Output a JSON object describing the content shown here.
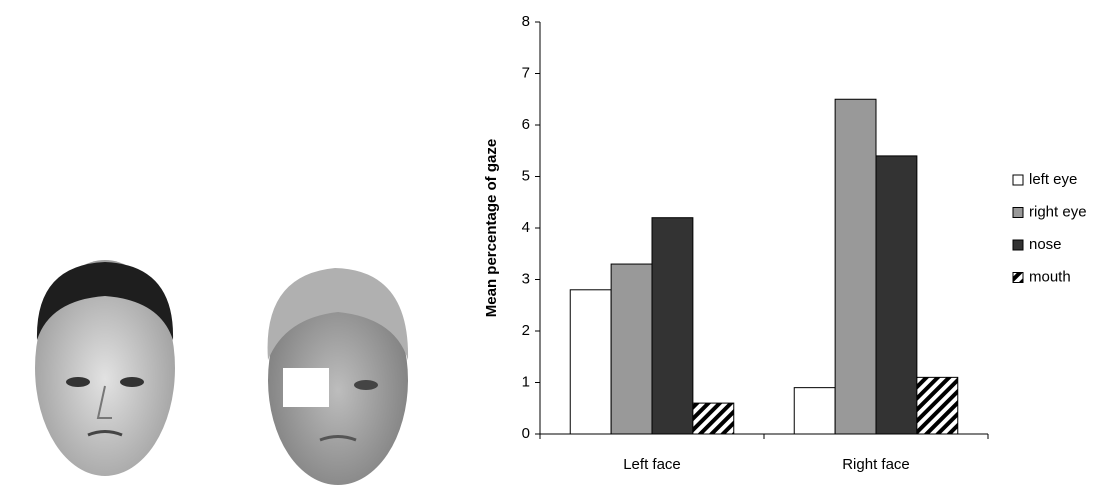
{
  "chart_data": {
    "type": "bar",
    "y_label": "Mean percentage of gaze",
    "categories": [
      "Left face",
      "Right face"
    ],
    "series": [
      {
        "name": "left eye",
        "color": "#ffffff",
        "values": [
          2.8,
          0.9
        ]
      },
      {
        "name": "right eye",
        "color": "#999999",
        "values": [
          3.3,
          6.5
        ]
      },
      {
        "name": "nose",
        "color": "#333333",
        "values": [
          4.2,
          5.4
        ]
      },
      {
        "name": "mouth",
        "color": "#000000",
        "hatch": true,
        "values": [
          0.6,
          1.1
        ]
      }
    ],
    "ylim": [
      0,
      8
    ],
    "yticks": [
      0,
      1,
      2,
      3,
      4,
      5,
      6,
      7,
      8
    ],
    "grid": false,
    "legend": "right"
  }
}
